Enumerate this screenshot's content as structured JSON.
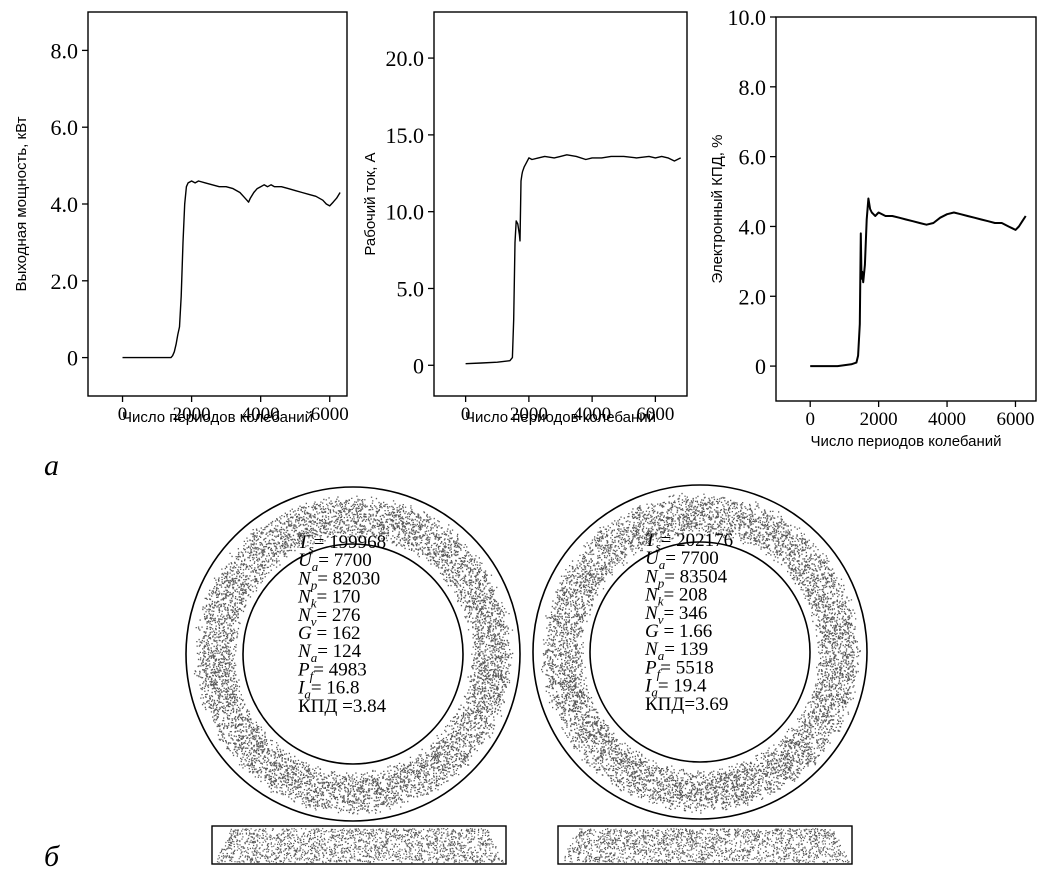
{
  "panel_a_label": "а",
  "panel_b_label": "б",
  "chart_data": [
    {
      "type": "line",
      "xlabel": "Число периодов колебаний",
      "ylabel": "Выходная мощность,  кВт",
      "xlim": [
        -1000,
        6500
      ],
      "ylim": [
        -1.0,
        9.0
      ],
      "xticks": [
        0,
        2000,
        4000,
        6000
      ],
      "xtick_labels": [
        "0",
        "2000",
        "4000",
        "6000"
      ],
      "yticks": [
        0,
        2.0,
        4.0,
        6.0,
        8.0
      ],
      "ytick_labels": [
        "0",
        "2.0",
        "4.0",
        "6.0",
        "8.0"
      ],
      "grid": false,
      "series": [
        {
          "x": [
            0,
            1400,
            1450,
            1500,
            1550,
            1600,
            1650,
            1700,
            1750,
            1800,
            1850,
            1900,
            2000,
            2100,
            2200,
            2400,
            2600,
            2800,
            3000,
            3200,
            3400,
            3500,
            3600,
            3650,
            3700,
            3800,
            3900,
            4000,
            4100,
            4200,
            4300,
            4400,
            4600,
            4800,
            5000,
            5200,
            5400,
            5600,
            5800,
            5900,
            6000,
            6100,
            6200,
            6300
          ],
          "y": [
            0,
            0,
            0.05,
            0.15,
            0.35,
            0.6,
            0.8,
            1.6,
            3.0,
            4.0,
            4.45,
            4.55,
            4.6,
            4.55,
            4.6,
            4.55,
            4.5,
            4.45,
            4.45,
            4.4,
            4.3,
            4.2,
            4.1,
            4.05,
            4.15,
            4.3,
            4.4,
            4.45,
            4.5,
            4.45,
            4.5,
            4.45,
            4.45,
            4.4,
            4.35,
            4.3,
            4.25,
            4.2,
            4.1,
            4.0,
            3.95,
            4.05,
            4.15,
            4.3
          ]
        }
      ]
    },
    {
      "type": "line",
      "xlabel": "Число периодов колебаний",
      "ylabel": "Рабочий ток, А",
      "xlim": [
        -1000,
        7000
      ],
      "ylim": [
        -2.0,
        23.0
      ],
      "xticks": [
        0,
        2000,
        4000,
        6000
      ],
      "xtick_labels": [
        "0",
        "2000",
        "4000",
        "6000"
      ],
      "yticks": [
        0,
        5.0,
        10.0,
        15.0,
        20.0
      ],
      "ytick_labels": [
        "0",
        "5.0",
        "10.0",
        "15.0",
        "20.0"
      ],
      "grid": false,
      "series": [
        {
          "x": [
            0,
            500,
            1000,
            1400,
            1480,
            1520,
            1560,
            1600,
            1650,
            1700,
            1720,
            1750,
            1780,
            1800,
            1850,
            1900,
            2000,
            2100,
            2300,
            2500,
            2800,
            3000,
            3200,
            3500,
            3800,
            4000,
            4300,
            4600,
            5000,
            5400,
            5800,
            6000,
            6200,
            6400,
            6600,
            6800
          ],
          "y": [
            0.1,
            0.15,
            0.2,
            0.3,
            0.5,
            3.0,
            8.0,
            9.4,
            9.2,
            8.5,
            8.1,
            12.0,
            12.4,
            12.6,
            12.9,
            13.1,
            13.5,
            13.4,
            13.5,
            13.6,
            13.5,
            13.6,
            13.7,
            13.6,
            13.4,
            13.5,
            13.5,
            13.6,
            13.6,
            13.5,
            13.6,
            13.5,
            13.6,
            13.5,
            13.3,
            13.5
          ]
        }
      ]
    },
    {
      "type": "line",
      "xlabel": "Число периодов колебаний",
      "ylabel": "Электронный  КПД, %",
      "xlim": [
        -1000,
        6600
      ],
      "ylim": [
        -1.0,
        10.0
      ],
      "xticks": [
        0,
        2000,
        4000,
        6000
      ],
      "xtick_labels": [
        "0",
        "2000",
        "4000",
        "6000"
      ],
      "yticks": [
        0,
        2.0,
        4.0,
        6.0,
        8.0,
        10.0
      ],
      "ytick_labels": [
        "0",
        "2.0",
        "4.0",
        "6.0",
        "8.0",
        "10.0"
      ],
      "grid": false,
      "series": [
        {
          "x": [
            0,
            800,
            1200,
            1350,
            1400,
            1450,
            1480,
            1500,
            1520,
            1550,
            1600,
            1650,
            1700,
            1750,
            1800,
            1850,
            1900,
            2000,
            2200,
            2400,
            2600,
            2800,
            3000,
            3200,
            3400,
            3600,
            3800,
            4000,
            4200,
            4400,
            4600,
            4800,
            5000,
            5200,
            5400,
            5600,
            5800,
            5900,
            6000,
            6100,
            6200,
            6300
          ],
          "y": [
            0,
            0,
            0.05,
            0.1,
            0.3,
            1.2,
            3.8,
            2.5,
            2.7,
            2.4,
            2.9,
            4.2,
            4.8,
            4.5,
            4.4,
            4.35,
            4.3,
            4.4,
            4.3,
            4.3,
            4.25,
            4.2,
            4.15,
            4.1,
            4.05,
            4.1,
            4.25,
            4.35,
            4.4,
            4.35,
            4.3,
            4.25,
            4.2,
            4.15,
            4.1,
            4.1,
            4.0,
            3.95,
            3.9,
            4.0,
            4.15,
            4.3
          ]
        }
      ]
    }
  ],
  "rings": [
    {
      "params": [
        {
          "sym": "T",
          "sub": "s",
          "val": "199968"
        },
        {
          "sym": "U",
          "sub": "a",
          "val": "7700"
        },
        {
          "sym": "N",
          "sub": "p",
          "val": "82030"
        },
        {
          "sym": "N",
          "sub": "k",
          "val": "170"
        },
        {
          "sym": "N",
          "sub": "v",
          "val": "276"
        },
        {
          "sym": "G",
          "sub": "",
          "val": "162"
        },
        {
          "sym": "N",
          "sub": "a",
          "val": "124"
        },
        {
          "sym": "P",
          "sub": "f",
          "val": "4983"
        },
        {
          "sym": "I",
          "sub": "a",
          "val": "16.8"
        }
      ],
      "kpd": "КПД =3.84"
    },
    {
      "params": [
        {
          "sym": "T",
          "sub": "s",
          "val": "202176"
        },
        {
          "sym": "U",
          "sub": "a",
          "val": "7700"
        },
        {
          "sym": "N",
          "sub": "p",
          "val": "83504"
        },
        {
          "sym": "N",
          "sub": "k",
          "val": "208"
        },
        {
          "sym": "N",
          "sub": "v",
          "val": "346"
        },
        {
          "sym": "G",
          "sub": "",
          "val": "1.66"
        },
        {
          "sym": "N",
          "sub": "a",
          "val": "139"
        },
        {
          "sym": "P",
          "sub": "f",
          "val": "5518"
        },
        {
          "sym": "I",
          "sub": "a",
          "val": "19.4"
        }
      ],
      "kpd": "КПД=3.69"
    }
  ],
  "colors": {
    "ink": "#000000",
    "dots": "#5a5a5a",
    "background": "#ffffff"
  }
}
